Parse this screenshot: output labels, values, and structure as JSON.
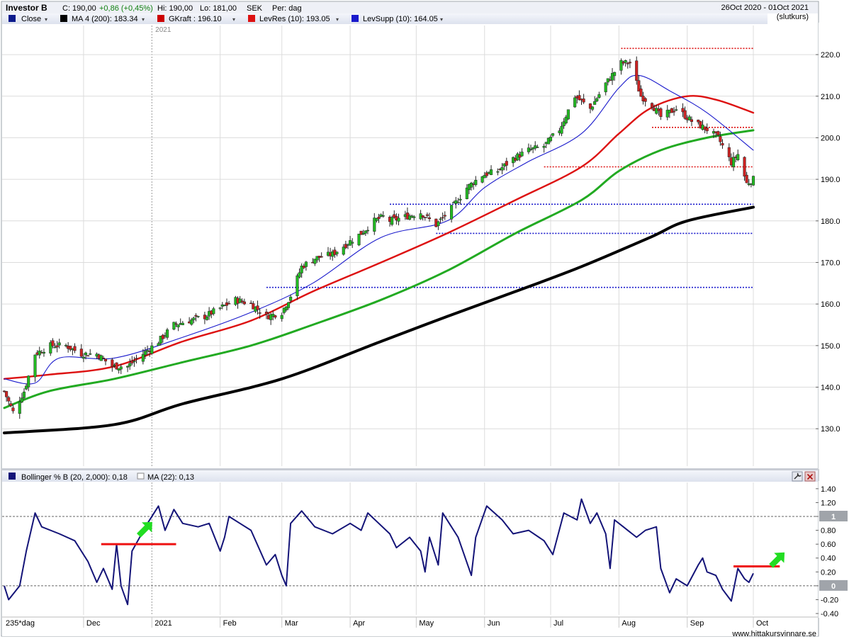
{
  "header": {
    "symbol": "Investor B",
    "close": "C: 190,00",
    "change": "+0,86 (+0,45%)",
    "high": "Hi: 190,00",
    "low": "Lo: 181,00",
    "currency": "SEK",
    "period": "Per: dag",
    "date_range": "26Oct 2020 - 01Oct 2021",
    "price_type": "(slutkurs)"
  },
  "legend": [
    {
      "label": "Close",
      "color": "#0a1a8c"
    },
    {
      "label": "MA 4 (200): 183.34",
      "color": "#000000"
    },
    {
      "label": "GKraft : 196.10",
      "color": "#cc0000"
    },
    {
      "label": "LevRes (10): 193.05",
      "color": "#dd1111"
    },
    {
      "label": "LevSupp (10): 164.05",
      "color": "#1a1acc"
    }
  ],
  "footer": {
    "bars_label": "235*dag",
    "watermark": "www.hittakursvinnare.se"
  },
  "year_marker": "2021",
  "colors": {
    "up": "#22bb22",
    "down": "#cc2222",
    "ma200": "#000000",
    "ma_green": "#22aa22",
    "ma_red": "#dd1111",
    "ma_blue": "#1a1acc",
    "bollinger": "#141478",
    "arrow": "#22dd22",
    "marker": "#ee1111"
  },
  "icons": [
    "wrench-icon",
    "close-icon"
  ],
  "chart_data": [
    {
      "type": "candlestick",
      "ylim": [
        121,
        227
      ],
      "y_ticks": [
        130,
        140,
        150,
        160,
        170,
        180,
        190,
        200,
        210,
        220
      ],
      "y_tick_labels": [
        "130.0",
        "140.0",
        "150.0",
        "160.0",
        "170.0",
        "180.0",
        "190.0",
        "200.0",
        "210.0",
        "220.0"
      ],
      "x_tick_labels": [
        "Dec",
        "2021",
        "Feb",
        "Mar",
        "Apr",
        "May",
        "Jun",
        "Jul",
        "Aug",
        "Sep",
        "Oct"
      ],
      "close_anchors": [
        [
          "2020-10-26",
          139
        ],
        [
          "2020-10-30",
          134
        ],
        [
          "2020-11-04",
          139
        ],
        [
          "2020-11-09",
          148
        ],
        [
          "2020-11-16",
          150
        ],
        [
          "2020-11-23",
          150
        ],
        [
          "2020-11-30",
          148
        ],
        [
          "2020-12-07",
          148
        ],
        [
          "2020-12-14",
          145
        ],
        [
          "2020-12-21",
          145
        ],
        [
          "2021-01-04",
          151
        ],
        [
          "2021-01-11",
          155
        ],
        [
          "2021-01-25",
          157
        ],
        [
          "2021-02-01",
          159
        ],
        [
          "2021-02-08",
          161
        ],
        [
          "2021-02-15",
          160
        ],
        [
          "2021-02-22",
          157
        ],
        [
          "2021-03-01",
          158
        ],
        [
          "2021-03-05",
          162
        ],
        [
          "2021-03-10",
          169
        ],
        [
          "2021-03-16",
          171
        ],
        [
          "2021-03-24",
          172
        ],
        [
          "2021-04-06",
          177
        ],
        [
          "2021-04-12",
          180
        ],
        [
          "2021-04-16",
          181
        ],
        [
          "2021-04-19",
          180
        ],
        [
          "2021-04-26",
          181
        ],
        [
          "2021-05-03",
          182
        ],
        [
          "2021-05-10",
          179
        ],
        [
          "2021-05-17",
          183
        ],
        [
          "2021-05-24",
          188
        ],
        [
          "2021-05-31",
          191
        ],
        [
          "2021-06-07",
          192
        ],
        [
          "2021-06-14",
          195
        ],
        [
          "2021-06-21",
          197
        ],
        [
          "2021-06-28",
          198
        ],
        [
          "2021-07-05",
          202
        ],
        [
          "2021-07-12",
          210
        ],
        [
          "2021-07-19",
          207
        ],
        [
          "2021-07-26",
          213
        ],
        [
          "2021-08-02",
          218
        ],
        [
          "2021-08-06",
          218
        ],
        [
          "2021-08-11",
          210
        ],
        [
          "2021-08-16",
          208
        ],
        [
          "2021-08-20",
          205
        ],
        [
          "2021-08-27",
          207
        ],
        [
          "2021-09-03",
          204
        ],
        [
          "2021-09-10",
          202
        ],
        [
          "2021-09-15",
          200
        ],
        [
          "2021-09-21",
          194
        ],
        [
          "2021-09-24",
          196
        ],
        [
          "2021-09-28",
          189
        ],
        [
          "2021-10-01",
          190
        ]
      ],
      "moving_averages": [
        {
          "name": "MA 4 (200): 183.34",
          "color": "#000000",
          "points": [
            [
              "2020-10-26",
              129
            ],
            [
              "2020-12-15",
              131
            ],
            [
              "2021-01-15",
              136
            ],
            [
              "2021-03-01",
              142
            ],
            [
              "2021-04-15",
              151
            ],
            [
              "2021-05-15",
              157
            ],
            [
              "2021-06-15",
              163
            ],
            [
              "2021-07-15",
              169
            ],
            [
              "2021-08-15",
              176
            ],
            [
              "2021-09-01",
              180
            ],
            [
              "2021-10-01",
              183.3
            ]
          ]
        },
        {
          "name": "MA green",
          "color": "#22aa22",
          "points": [
            [
              "2020-10-26",
              135
            ],
            [
              "2020-11-15",
              139
            ],
            [
              "2020-12-15",
              142
            ],
            [
              "2021-01-15",
              146
            ],
            [
              "2021-02-15",
              150
            ],
            [
              "2021-03-15",
              155
            ],
            [
              "2021-04-15",
              161
            ],
            [
              "2021-05-15",
              168
            ],
            [
              "2021-06-15",
              177
            ],
            [
              "2021-07-15",
              185
            ],
            [
              "2021-08-01",
              192
            ],
            [
              "2021-08-20",
              197
            ],
            [
              "2021-09-10",
              200
            ],
            [
              "2021-10-01",
              201.8
            ]
          ]
        },
        {
          "name": "MA red",
          "color": "#dd1111",
          "points": [
            [
              "2020-10-26",
              142
            ],
            [
              "2020-11-15",
              143
            ],
            [
              "2020-12-15",
              145
            ],
            [
              "2021-01-15",
              151
            ],
            [
              "2021-02-15",
              156
            ],
            [
              "2021-03-15",
              163
            ],
            [
              "2021-04-15",
              170
            ],
            [
              "2021-05-15",
              177
            ],
            [
              "2021-06-15",
              185
            ],
            [
              "2021-07-15",
              193
            ],
            [
              "2021-08-01",
              201
            ],
            [
              "2021-08-15",
              207
            ],
            [
              "2021-09-01",
              210
            ],
            [
              "2021-09-15",
              209
            ],
            [
              "2021-10-01",
              206
            ]
          ]
        },
        {
          "name": "MA blue",
          "color": "#1a1acc",
          "points": [
            [
              "2020-10-26",
              142
            ],
            [
              "2020-11-09",
              141
            ],
            [
              "2020-11-20",
              147
            ],
            [
              "2020-12-15",
              147
            ],
            [
              "2021-01-15",
              152
            ],
            [
              "2021-02-15",
              158
            ],
            [
              "2021-03-15",
              165
            ],
            [
              "2021-04-15",
              176
            ],
            [
              "2021-05-15",
              180
            ],
            [
              "2021-06-01",
              188
            ],
            [
              "2021-06-20",
              194
            ],
            [
              "2021-07-15",
              201
            ],
            [
              "2021-08-01",
              212
            ],
            [
              "2021-08-10",
              215
            ],
            [
              "2021-08-25",
              211
            ],
            [
              "2021-09-10",
              206
            ],
            [
              "2021-10-01",
              197
            ]
          ]
        }
      ],
      "levels": [
        {
          "name": "LevRes",
          "color": "#dd1111",
          "style": "dotted",
          "y": 221.5,
          "from": "2021-08-02",
          "to": "2021-10-01"
        },
        {
          "name": "LevRes",
          "color": "#dd1111",
          "style": "dotted",
          "y": 202.5,
          "from": "2021-08-16",
          "to": "2021-10-01"
        },
        {
          "name": "LevRes",
          "color": "#dd1111",
          "style": "dotted",
          "y": 193,
          "from": "2021-06-28",
          "to": "2021-10-01"
        },
        {
          "name": "LevSupp",
          "color": "#1a1acc",
          "style": "dotted",
          "y": 184,
          "from": "2021-04-19",
          "to": "2021-10-01"
        },
        {
          "name": "LevSupp",
          "color": "#1a1acc",
          "style": "dotted",
          "y": 177,
          "from": "2021-05-10",
          "to": "2021-10-01"
        },
        {
          "name": "LevSupp",
          "color": "#1a1acc",
          "style": "dotted",
          "y": 164,
          "from": "2021-02-22",
          "to": "2021-10-01"
        }
      ]
    },
    {
      "type": "line",
      "title": "Bollinger % B (20, 2,000): 0,18",
      "legend_extra": "MA (22): 0,13",
      "ylim": [
        -0.42,
        1.47
      ],
      "y_ticks": [
        -0.4,
        -0.2,
        0,
        0.2,
        0.4,
        0.6,
        0.8,
        1,
        1.2,
        1.4
      ],
      "y_tick_labels": [
        "-0.40",
        "-0.20",
        "0",
        "0.20",
        "0.40",
        "0.60",
        "0.80",
        "1",
        "1.20",
        "1.40"
      ],
      "boxed_ticks": [
        "0",
        "1"
      ],
      "reference_lines": [
        0,
        1
      ],
      "series": [
        {
          "name": "Bollinger % B (20, 2,000): 0,18",
          "color": "#141478",
          "points": [
            [
              "2020-10-26",
              0.0
            ],
            [
              "2020-10-28",
              -0.2
            ],
            [
              "2020-11-02",
              0.0
            ],
            [
              "2020-11-05",
              0.5
            ],
            [
              "2020-11-09",
              1.05
            ],
            [
              "2020-11-12",
              0.85
            ],
            [
              "2020-11-20",
              0.75
            ],
            [
              "2020-11-27",
              0.65
            ],
            [
              "2020-12-03",
              0.35
            ],
            [
              "2020-12-07",
              0.05
            ],
            [
              "2020-12-10",
              0.25
            ],
            [
              "2020-12-14",
              -0.05
            ],
            [
              "2020-12-16",
              0.6
            ],
            [
              "2020-12-18",
              0.0
            ],
            [
              "2020-12-21",
              -0.27
            ],
            [
              "2020-12-23",
              0.5
            ],
            [
              "2020-12-30",
              0.9
            ],
            [
              "2021-01-04",
              1.15
            ],
            [
              "2021-01-07",
              0.8
            ],
            [
              "2021-01-11",
              1.1
            ],
            [
              "2021-01-15",
              0.9
            ],
            [
              "2021-01-22",
              0.85
            ],
            [
              "2021-01-27",
              0.9
            ],
            [
              "2021-02-01",
              0.5
            ],
            [
              "2021-02-03",
              0.7
            ],
            [
              "2021-02-05",
              1.0
            ],
            [
              "2021-02-10",
              0.9
            ],
            [
              "2021-02-15",
              0.8
            ],
            [
              "2021-02-22",
              0.3
            ],
            [
              "2021-02-26",
              0.45
            ],
            [
              "2021-03-01",
              0.15
            ],
            [
              "2021-03-03",
              0.0
            ],
            [
              "2021-03-05",
              0.9
            ],
            [
              "2021-03-10",
              1.08
            ],
            [
              "2021-03-16",
              0.85
            ],
            [
              "2021-03-24",
              0.75
            ],
            [
              "2021-04-01",
              0.9
            ],
            [
              "2021-04-06",
              0.8
            ],
            [
              "2021-04-09",
              1.05
            ],
            [
              "2021-04-14",
              0.9
            ],
            [
              "2021-04-19",
              0.75
            ],
            [
              "2021-04-22",
              0.55
            ],
            [
              "2021-04-28",
              0.7
            ],
            [
              "2021-05-03",
              0.5
            ],
            [
              "2021-05-05",
              0.2
            ],
            [
              "2021-05-07",
              0.7
            ],
            [
              "2021-05-11",
              0.3
            ],
            [
              "2021-05-13",
              1.05
            ],
            [
              "2021-05-20",
              0.7
            ],
            [
              "2021-05-26",
              0.15
            ],
            [
              "2021-05-28",
              0.7
            ],
            [
              "2021-06-02",
              1.15
            ],
            [
              "2021-06-09",
              0.95
            ],
            [
              "2021-06-14",
              0.75
            ],
            [
              "2021-06-21",
              0.8
            ],
            [
              "2021-06-28",
              0.65
            ],
            [
              "2021-07-02",
              0.45
            ],
            [
              "2021-07-07",
              1.05
            ],
            [
              "2021-07-13",
              0.95
            ],
            [
              "2021-07-15",
              1.25
            ],
            [
              "2021-07-19",
              0.9
            ],
            [
              "2021-07-22",
              1.05
            ],
            [
              "2021-07-26",
              0.75
            ],
            [
              "2021-07-28",
              0.25
            ],
            [
              "2021-07-30",
              0.95
            ],
            [
              "2021-08-03",
              0.85
            ],
            [
              "2021-08-09",
              0.7
            ],
            [
              "2021-08-13",
              0.8
            ],
            [
              "2021-08-18",
              0.85
            ],
            [
              "2021-08-20",
              0.25
            ],
            [
              "2021-08-24",
              -0.1
            ],
            [
              "2021-08-27",
              0.1
            ],
            [
              "2021-09-01",
              0.0
            ],
            [
              "2021-09-06",
              0.3
            ],
            [
              "2021-09-08",
              0.4
            ],
            [
              "2021-09-10",
              0.2
            ],
            [
              "2021-09-14",
              0.15
            ],
            [
              "2021-09-17",
              -0.05
            ],
            [
              "2021-09-21",
              -0.22
            ],
            [
              "2021-09-24",
              0.25
            ],
            [
              "2021-09-27",
              0.1
            ],
            [
              "2021-09-29",
              0.05
            ],
            [
              "2021-10-01",
              0.18
            ]
          ]
        }
      ],
      "annotations": [
        {
          "type": "hline",
          "color": "#ee1111",
          "y": 0.6,
          "from": "2020-12-09",
          "to": "2021-01-12"
        },
        {
          "type": "arrow",
          "color": "#22dd22",
          "at": "2020-12-29",
          "y": 0.82
        },
        {
          "type": "hline",
          "color": "#ee1111",
          "y": 0.28,
          "from": "2021-09-22",
          "to": "2021-10-13"
        },
        {
          "type": "arrow",
          "color": "#22dd22",
          "at": "2021-10-12",
          "y": 0.38
        }
      ]
    }
  ]
}
